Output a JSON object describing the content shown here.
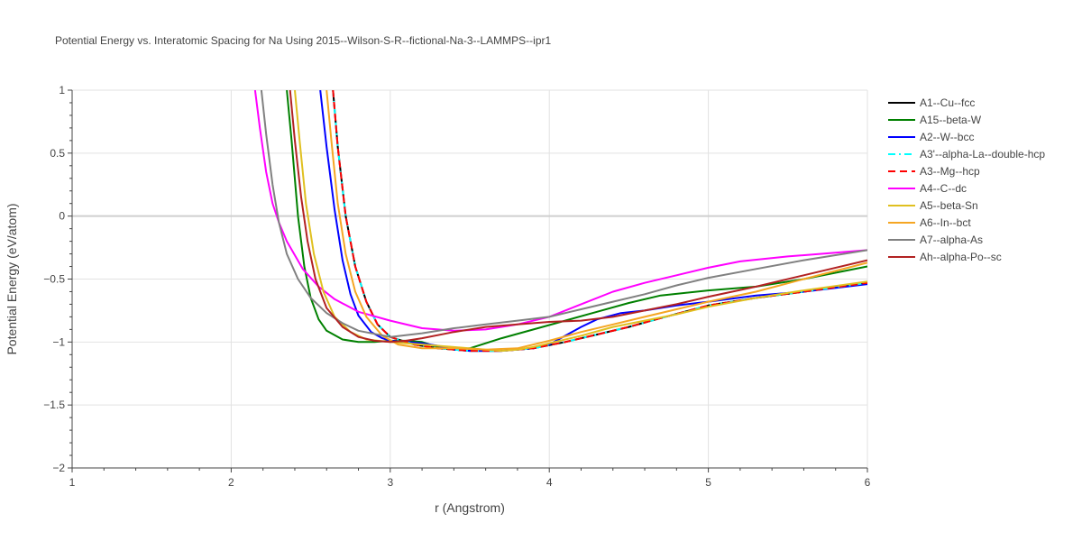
{
  "chart_data": {
    "type": "line",
    "title": "Potential Energy vs. Interatomic Spacing for Na Using 2015--Wilson-S-R--fictional-Na-3--LAMMPS--ipr1",
    "xlabel": "r (Angstrom)",
    "ylabel": "Potential Energy (eV/atom)",
    "xlim": [
      1,
      6
    ],
    "ylim": [
      -2,
      1
    ],
    "xticks": [
      1,
      2,
      3,
      4,
      5,
      6
    ],
    "xtick_labels": [
      "1",
      "2",
      "3",
      "4",
      "5",
      "6"
    ],
    "yticks": [
      1,
      0.5,
      0,
      -0.5,
      -1,
      -1.5,
      -2
    ],
    "ytick_labels": [
      "1",
      "0.5",
      "0",
      "−0.5",
      "−1",
      "−1.5",
      "−2"
    ],
    "grid": true,
    "legend_position": "right",
    "series": [
      {
        "name": "A1--Cu--fcc",
        "color": "#000000",
        "dash": "solid",
        "x": [
          2.64,
          2.67,
          2.72,
          2.78,
          2.85,
          2.92,
          3.0,
          3.15,
          3.3,
          3.5,
          3.7,
          3.9,
          4.1,
          4.3,
          4.5,
          4.7,
          5.0,
          5.3,
          5.6,
          6.0
        ],
        "y": [
          1.0,
          0.55,
          0.0,
          -0.4,
          -0.68,
          -0.86,
          -0.96,
          -1.02,
          -1.05,
          -1.07,
          -1.07,
          -1.05,
          -1.0,
          -0.94,
          -0.88,
          -0.81,
          -0.71,
          -0.65,
          -0.6,
          -0.53
        ]
      },
      {
        "name": "A15--beta-W",
        "color": "#008000",
        "dash": "solid",
        "x": [
          2.35,
          2.38,
          2.42,
          2.46,
          2.5,
          2.55,
          2.6,
          2.7,
          2.8,
          2.9,
          3.0,
          3.1,
          3.2,
          3.3,
          3.4,
          3.5,
          3.7,
          3.9,
          4.1,
          4.3,
          4.5,
          4.7,
          5.0,
          5.3,
          5.6,
          6.0
        ],
        "y": [
          1.0,
          0.6,
          0.0,
          -0.4,
          -0.65,
          -0.82,
          -0.91,
          -0.98,
          -1.0,
          -1.0,
          -0.99,
          -0.99,
          -1.0,
          -1.04,
          -1.06,
          -1.05,
          -0.97,
          -0.9,
          -0.83,
          -0.76,
          -0.69,
          -0.63,
          -0.59,
          -0.56,
          -0.5,
          -0.4
        ]
      },
      {
        "name": "A2--W--bcc",
        "color": "#0000ff",
        "dash": "solid",
        "x": [
          2.56,
          2.6,
          2.65,
          2.7,
          2.75,
          2.8,
          2.88,
          2.95,
          3.0,
          3.1,
          3.2,
          3.3,
          3.4,
          3.5,
          3.6,
          3.7,
          3.8,
          3.9,
          4.0,
          4.1,
          4.2,
          4.3,
          4.45,
          4.6,
          4.8,
          5.0,
          5.3,
          5.6,
          6.0
        ],
        "y": [
          1.0,
          0.55,
          0.05,
          -0.35,
          -0.62,
          -0.79,
          -0.92,
          -0.97,
          -0.99,
          -1.0,
          -1.01,
          -1.03,
          -1.06,
          -1.07,
          -1.07,
          -1.07,
          -1.06,
          -1.05,
          -1.02,
          -0.95,
          -0.88,
          -0.82,
          -0.77,
          -0.75,
          -0.71,
          -0.68,
          -0.63,
          -0.6,
          -0.54
        ]
      },
      {
        "name": "A3'--alpha-La--double-hcp",
        "color": "#00ffff",
        "dash": "dashdot",
        "x": [
          2.64,
          2.67,
          2.72,
          2.78,
          2.85,
          2.92,
          3.0,
          3.15,
          3.3,
          3.5,
          3.7,
          3.9,
          4.1,
          4.3,
          4.5,
          4.7,
          5.0,
          5.3,
          5.6,
          6.0
        ],
        "y": [
          1.0,
          0.55,
          0.0,
          -0.4,
          -0.68,
          -0.86,
          -0.96,
          -1.02,
          -1.05,
          -1.07,
          -1.07,
          -1.05,
          -1.0,
          -0.94,
          -0.88,
          -0.81,
          -0.71,
          -0.65,
          -0.6,
          -0.53
        ]
      },
      {
        "name": "A3--Mg--hcp",
        "color": "#ff0000",
        "dash": "dash",
        "x": [
          2.64,
          2.67,
          2.72,
          2.78,
          2.85,
          2.92,
          3.0,
          3.15,
          3.3,
          3.5,
          3.7,
          3.9,
          4.1,
          4.3,
          4.5,
          4.7,
          5.0,
          5.3,
          5.6,
          6.0
        ],
        "y": [
          1.0,
          0.55,
          0.0,
          -0.4,
          -0.68,
          -0.86,
          -0.96,
          -1.02,
          -1.05,
          -1.07,
          -1.07,
          -1.05,
          -1.0,
          -0.94,
          -0.88,
          -0.81,
          -0.71,
          -0.65,
          -0.6,
          -0.53
        ]
      },
      {
        "name": "A4--C--dc",
        "color": "#ff00ff",
        "dash": "solid",
        "x": [
          2.15,
          2.18,
          2.22,
          2.26,
          2.3,
          2.35,
          2.45,
          2.55,
          2.65,
          2.8,
          3.0,
          3.2,
          3.4,
          3.6,
          3.8,
          4.0,
          4.2,
          4.4,
          4.6,
          4.8,
          5.0,
          5.2,
          5.5,
          5.8,
          6.0
        ],
        "y": [
          1.0,
          0.7,
          0.35,
          0.1,
          -0.05,
          -0.2,
          -0.42,
          -0.56,
          -0.66,
          -0.76,
          -0.83,
          -0.89,
          -0.91,
          -0.9,
          -0.86,
          -0.8,
          -0.7,
          -0.6,
          -0.53,
          -0.47,
          -0.41,
          -0.36,
          -0.32,
          -0.29,
          -0.27
        ]
      },
      {
        "name": "A5--beta-Sn",
        "color": "#e0c020",
        "dash": "solid",
        "x": [
          2.4,
          2.43,
          2.47,
          2.52,
          2.58,
          2.65,
          2.75,
          2.85,
          3.0,
          3.2,
          3.4,
          3.6,
          3.7,
          3.8,
          3.9,
          4.0,
          4.2,
          4.4,
          4.6,
          4.8,
          5.0,
          5.3,
          5.6,
          6.0
        ],
        "y": [
          1.0,
          0.6,
          0.1,
          -0.3,
          -0.6,
          -0.8,
          -0.92,
          -0.98,
          -1.0,
          -1.02,
          -1.04,
          -1.06,
          -1.07,
          -1.06,
          -1.04,
          -1.01,
          -0.95,
          -0.88,
          -0.83,
          -0.78,
          -0.72,
          -0.65,
          -0.59,
          -0.52
        ]
      },
      {
        "name": "A6--In--bct",
        "color": "#f5a623",
        "dash": "solid",
        "x": [
          2.6,
          2.63,
          2.67,
          2.72,
          2.78,
          2.85,
          2.95,
          3.05,
          3.2,
          3.4,
          3.6,
          3.8,
          4.0,
          4.2,
          4.4,
          4.6,
          4.8,
          5.0,
          5.3,
          5.6,
          6.0
        ],
        "y": [
          1.0,
          0.6,
          0.1,
          -0.3,
          -0.6,
          -0.8,
          -0.95,
          -1.02,
          -1.05,
          -1.05,
          -1.06,
          -1.05,
          -0.99,
          -0.92,
          -0.86,
          -0.8,
          -0.74,
          -0.68,
          -0.6,
          -0.5,
          -0.37
        ]
      },
      {
        "name": "A7--alpha-As",
        "color": "#808080",
        "dash": "solid",
        "x": [
          2.19,
          2.22,
          2.26,
          2.3,
          2.35,
          2.42,
          2.5,
          2.6,
          2.7,
          2.8,
          3.0,
          3.2,
          3.4,
          3.6,
          3.8,
          4.0,
          4.2,
          4.4,
          4.6,
          4.8,
          5.0,
          5.3,
          5.6,
          6.0
        ],
        "y": [
          1.0,
          0.65,
          0.25,
          -0.05,
          -0.3,
          -0.5,
          -0.65,
          -0.77,
          -0.85,
          -0.91,
          -0.96,
          -0.93,
          -0.89,
          -0.86,
          -0.83,
          -0.8,
          -0.74,
          -0.68,
          -0.62,
          -0.55,
          -0.49,
          -0.42,
          -0.35,
          -0.27
        ]
      },
      {
        "name": "Ah--alpha-Po--sc",
        "color": "#b22222",
        "dash": "solid",
        "x": [
          2.37,
          2.4,
          2.44,
          2.48,
          2.53,
          2.6,
          2.7,
          2.8,
          2.9,
          3.0,
          3.1,
          3.2,
          3.4,
          3.6,
          3.8,
          4.0,
          4.2,
          4.4,
          4.6,
          4.8,
          5.0,
          5.3,
          5.6,
          6.0
        ],
        "y": [
          1.0,
          0.6,
          0.15,
          -0.2,
          -0.5,
          -0.73,
          -0.88,
          -0.96,
          -0.99,
          -1.0,
          -0.99,
          -0.97,
          -0.92,
          -0.88,
          -0.86,
          -0.84,
          -0.83,
          -0.8,
          -0.75,
          -0.7,
          -0.64,
          -0.56,
          -0.47,
          -0.35
        ]
      }
    ]
  }
}
